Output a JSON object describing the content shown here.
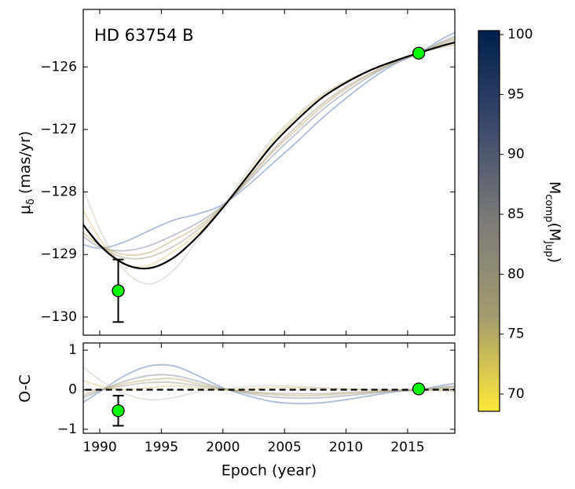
{
  "chart_data": [
    {
      "type": "line",
      "title": "HD 63754 B",
      "ylabel": [
        {
          "text": "μ"
        },
        {
          "text": "δ",
          "sub": true
        },
        {
          "text": " (mas/yr)"
        }
      ],
      "xlim": [
        1988.66,
        2018.83
      ],
      "ylim": [
        -130.29,
        -125.08
      ],
      "xticks": [
        1990,
        1995,
        2000,
        2005,
        2010,
        2015
      ],
      "yticks": [
        {
          "value": -130,
          "label": "−130"
        },
        {
          "value": -129,
          "label": "−129"
        },
        {
          "value": -128,
          "label": "−128"
        },
        {
          "value": -127,
          "label": "−127"
        },
        {
          "value": -126,
          "label": "−126"
        }
      ],
      "x": [
        1988,
        1990,
        1992,
        1994,
        1996,
        1998,
        2000,
        2002,
        2004,
        2006,
        2008,
        2010,
        2012,
        2014,
        2016,
        2018,
        2020
      ],
      "series": [
        {
          "color": "#5a76a8",
          "values": [
            -128.8,
            -128.9,
            -128.8,
            -128.62,
            -128.45,
            -128.35,
            -128.2,
            -127.9,
            -127.55,
            -127.2,
            -126.83,
            -126.5,
            -126.2,
            -125.95,
            -125.77,
            -125.53,
            -125.35
          ]
        },
        {
          "color": "#7d8597",
          "values": [
            -128.62,
            -128.88,
            -128.94,
            -128.86,
            -128.69,
            -128.49,
            -128.22,
            -127.84,
            -127.43,
            -127.06,
            -126.7,
            -126.4,
            -126.14,
            -125.93,
            -125.77,
            -125.58,
            -125.43
          ]
        },
        {
          "color": "#a09a85",
          "values": [
            -128.35,
            -128.85,
            -129.05,
            -129.04,
            -128.87,
            -128.6,
            -128.24,
            -127.8,
            -127.34,
            -126.95,
            -126.6,
            -126.32,
            -126.1,
            -125.92,
            -125.77,
            -125.62,
            -125.49
          ]
        },
        {
          "color": "#d9c67a",
          "values": [
            -128.05,
            -128.75,
            -129.15,
            -129.17,
            -128.95,
            -128.65,
            -128.25,
            -127.73,
            -127.2,
            -126.8,
            -126.46,
            -126.23,
            -126.05,
            -125.9,
            -125.77,
            -125.67,
            -125.6
          ]
        },
        {
          "color": "#c8c8bc",
          "values": [
            -127.6,
            -128.6,
            -129.25,
            -129.47,
            -129.25,
            -128.75,
            -128.23,
            -127.67,
            -127.15,
            -126.77,
            -126.45,
            -126.23,
            -126.05,
            -125.9,
            -125.77,
            -125.68,
            -125.61
          ]
        },
        {
          "color": "#b5a66a",
          "values": [
            -128.55,
            -128.85,
            -129.0,
            -128.97,
            -128.77,
            -128.55,
            -128.23,
            -127.81,
            -127.37,
            -127.0,
            -126.64,
            -126.35,
            -126.11,
            -125.92,
            -125.77,
            -125.6,
            -125.47
          ]
        },
        {
          "color": "#000000",
          "best": true,
          "values": [
            -128.35,
            -128.85,
            -129.15,
            -129.22,
            -129.05,
            -128.7,
            -128.25,
            -127.75,
            -127.25,
            -126.85,
            -126.5,
            -126.25,
            -126.05,
            -125.9,
            -125.77,
            -125.65,
            -125.55
          ]
        }
      ],
      "points": {
        "color": "#00ff00",
        "x": [
          1991.5,
          2015.9
        ],
        "y": [
          -129.58,
          -125.78
        ],
        "yerr": [
          0.5,
          null
        ]
      },
      "colorbar": {
        "label": [
          {
            "text": "M"
          },
          {
            "text": "comp",
            "sub": true
          },
          {
            "text": "(M"
          },
          {
            "text": "Jup",
            "sub": true
          },
          {
            "text": ")"
          }
        ],
        "lim": [
          68.56,
          100.33
        ],
        "ticks": [
          70,
          75,
          80,
          85,
          90,
          95,
          100
        ],
        "colormap": [
          "#fee838",
          "#a39b6f",
          "#7c7b78",
          "#3b496c",
          "#00204c"
        ]
      }
    },
    {
      "type": "line",
      "ylabel": [
        {
          "text": "O-C"
        }
      ],
      "xlabel": "Epoch (year)",
      "xlim": [
        1988.66,
        2018.83
      ],
      "ylim": [
        -1.1,
        1.18
      ],
      "xticks": [
        1990,
        1995,
        2000,
        2005,
        2010,
        2015
      ],
      "yticks": [
        {
          "value": -1,
          "label": "−1"
        },
        0,
        1
      ],
      "x": [
        1988,
        1990,
        1992,
        1994,
        1996,
        1998,
        2000,
        2002,
        2004,
        2006,
        2008,
        2010,
        2012,
        2014,
        2016,
        2018,
        2020
      ],
      "series": [
        {
          "color": "#5a76a8",
          "values": [
            -0.45,
            -0.05,
            0.35,
            0.6,
            0.6,
            0.35,
            0.05,
            -0.15,
            -0.3,
            -0.35,
            -0.33,
            -0.25,
            -0.15,
            -0.05,
            0.0,
            0.12,
            0.2
          ]
        },
        {
          "color": "#7d8597",
          "values": [
            -0.27,
            -0.03,
            0.21,
            0.36,
            0.36,
            0.21,
            0.03,
            -0.09,
            -0.18,
            -0.21,
            -0.2,
            -0.15,
            -0.09,
            -0.03,
            0,
            0.07,
            0.12
          ]
        },
        {
          "color": "#a09a85",
          "values": [
            0.0,
            0.0,
            0.1,
            0.18,
            0.18,
            0.1,
            0.01,
            -0.05,
            -0.09,
            -0.1,
            -0.1,
            -0.07,
            -0.05,
            -0.02,
            0,
            0.03,
            0.06
          ]
        },
        {
          "color": "#d9c67a",
          "values": [
            0.3,
            0.1,
            0.0,
            0.05,
            0.1,
            0.05,
            0,
            0.02,
            0.05,
            0.05,
            0.04,
            0.02,
            0,
            0,
            0,
            -0.02,
            -0.05
          ]
        },
        {
          "color": "#c8c8bc",
          "values": [
            0.75,
            0.25,
            -0.1,
            -0.25,
            -0.2,
            -0.05,
            0.02,
            0.08,
            0.1,
            0.08,
            0.05,
            0.02,
            0,
            0,
            0,
            -0.03,
            -0.06
          ]
        },
        {
          "color": "#b5a66a",
          "values": [
            -0.2,
            0.0,
            0.15,
            0.25,
            0.28,
            0.15,
            0.02,
            -0.06,
            -0.12,
            -0.15,
            -0.14,
            -0.1,
            -0.06,
            -0.02,
            0,
            0.05,
            0.08
          ]
        },
        {
          "color": "#000000",
          "best": true,
          "dash": true,
          "values": [
            0,
            0,
            0,
            0,
            0,
            0,
            0,
            0,
            0,
            0,
            0,
            0,
            0,
            0,
            0,
            0,
            0
          ]
        }
      ],
      "points": {
        "color": "#00ff00",
        "x": [
          1991.5,
          2015.9
        ],
        "y": [
          -0.53,
          0.02
        ],
        "yerr": [
          0.38,
          null
        ]
      }
    }
  ]
}
